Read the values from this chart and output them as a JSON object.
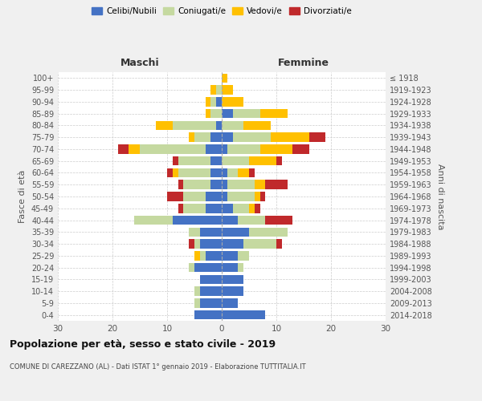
{
  "age_groups": [
    "0-4",
    "5-9",
    "10-14",
    "15-19",
    "20-24",
    "25-29",
    "30-34",
    "35-39",
    "40-44",
    "45-49",
    "50-54",
    "55-59",
    "60-64",
    "65-69",
    "70-74",
    "75-79",
    "80-84",
    "85-89",
    "90-94",
    "95-99",
    "100+"
  ],
  "birth_years": [
    "2014-2018",
    "2009-2013",
    "2004-2008",
    "1999-2003",
    "1994-1998",
    "1989-1993",
    "1984-1988",
    "1979-1983",
    "1974-1978",
    "1969-1973",
    "1964-1968",
    "1959-1963",
    "1954-1958",
    "1949-1953",
    "1944-1948",
    "1939-1943",
    "1934-1938",
    "1929-1933",
    "1924-1928",
    "1919-1923",
    "≤ 1918"
  ],
  "male": {
    "celibi": [
      5,
      4,
      4,
      4,
      5,
      3,
      4,
      4,
      9,
      3,
      3,
      2,
      2,
      2,
      3,
      2,
      1,
      0,
      1,
      0,
      0
    ],
    "coniugati": [
      0,
      1,
      1,
      0,
      1,
      1,
      1,
      2,
      7,
      4,
      4,
      5,
      6,
      6,
      12,
      3,
      8,
      2,
      1,
      1,
      0
    ],
    "vedovi": [
      0,
      0,
      0,
      0,
      0,
      1,
      0,
      0,
      0,
      0,
      0,
      0,
      1,
      0,
      2,
      1,
      3,
      1,
      1,
      1,
      0
    ],
    "divorziati": [
      0,
      0,
      0,
      0,
      0,
      0,
      1,
      0,
      0,
      1,
      3,
      1,
      1,
      1,
      2,
      0,
      0,
      0,
      0,
      0,
      0
    ]
  },
  "female": {
    "nubili": [
      8,
      3,
      4,
      4,
      3,
      3,
      4,
      5,
      3,
      2,
      1,
      1,
      1,
      0,
      1,
      2,
      0,
      2,
      0,
      0,
      0
    ],
    "coniugate": [
      0,
      0,
      0,
      0,
      1,
      2,
      6,
      7,
      5,
      3,
      5,
      5,
      2,
      5,
      6,
      7,
      4,
      5,
      0,
      0,
      0
    ],
    "vedove": [
      0,
      0,
      0,
      0,
      0,
      0,
      0,
      0,
      0,
      1,
      1,
      2,
      2,
      5,
      6,
      7,
      5,
      5,
      4,
      2,
      1
    ],
    "divorziate": [
      0,
      0,
      0,
      0,
      0,
      0,
      1,
      0,
      5,
      1,
      1,
      4,
      1,
      1,
      3,
      3,
      0,
      0,
      0,
      0,
      0
    ]
  },
  "colors": {
    "celibi_nubili": "#4472c4",
    "coniugati_e": "#c5d9a0",
    "vedovi_e": "#ffc000",
    "divorziati_e": "#c0292b"
  },
  "xlim": 30,
  "title": "Popolazione per età, sesso e stato civile - 2019",
  "subtitle": "COMUNE DI CAREZZANO (AL) - Dati ISTAT 1° gennaio 2019 - Elaborazione TUTTITALIA.IT",
  "ylabel_left": "Fasce di età",
  "ylabel_right": "Anni di nascita",
  "xlabel_left": "Maschi",
  "xlabel_right": "Femmine",
  "legend_labels": [
    "Celibi/Nubili",
    "Coniugati/e",
    "Vedovi/e",
    "Divorziati/e"
  ],
  "bg_color": "#f0f0f0",
  "plot_bg": "#ffffff"
}
